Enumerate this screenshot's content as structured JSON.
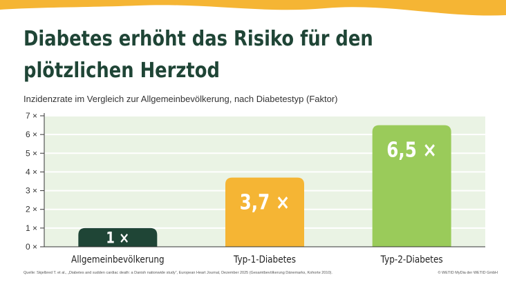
{
  "title_line1": "Diabetes erhöht das Risiko für den",
  "title_line2": "plötzlichen Herztod",
  "subtitle": "Inzidenzrate im Vergleich zur Allgemeinbevölkerung, nach Diabetestyp (Faktor)",
  "source": "Quelle: Skjelbred T. et al., „Diabetes and sudden cardiac death: a Danish nationwide study“, European Heart Journal, Dezember 2025 (Gesamtbevölkerung Dänemarks, Kohorte 2010).",
  "copyright": "© WETID MyDia der WETID GmbH",
  "colors": {
    "title": "#1f4536",
    "wave": "#f5b534",
    "plot_bg": "#eaf3e4",
    "grid": "#ffffff",
    "bars": [
      "#1f4536",
      "#f5b534",
      "#9acb5a"
    ]
  },
  "chart_data": {
    "type": "bar",
    "categories": [
      "Allgemeinbevölkerung",
      "Typ-1-Diabetes",
      "Typ-2-Diabetes"
    ],
    "values": [
      1,
      3.7,
      6.5
    ],
    "data_labels": [
      "1 ×",
      "3,7 ×",
      "6,5 ×"
    ],
    "ylim": [
      0,
      7
    ],
    "yticks": [
      0,
      1,
      2,
      3,
      4,
      5,
      6,
      7
    ],
    "ytick_labels": [
      "0 ×",
      "1 ×",
      "2 ×",
      "3 ×",
      "4 ×",
      "5 ×",
      "6 ×",
      "7 ×"
    ],
    "grid": true
  }
}
